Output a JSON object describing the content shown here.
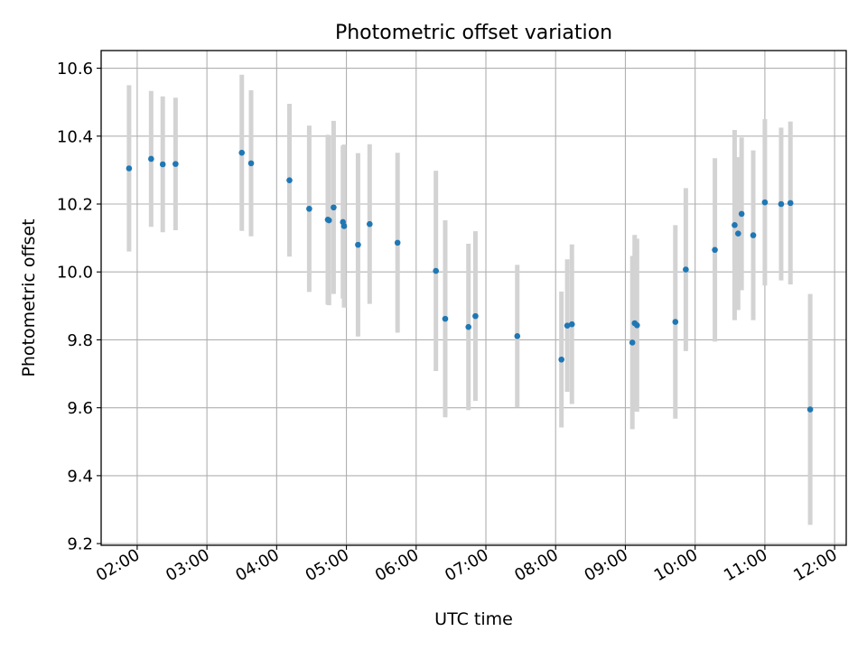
{
  "chart_data": {
    "type": "scatter",
    "title": "Photometric offset variation",
    "xlabel": "UTC time",
    "ylabel": "Photometric offset",
    "xlim": [
      "01:29",
      "12:10"
    ],
    "ylim": [
      9.195,
      10.652
    ],
    "grid": true,
    "x_ticks": [
      "02:00",
      "03:00",
      "04:00",
      "05:00",
      "06:00",
      "07:00",
      "08:00",
      "09:00",
      "10:00",
      "11:00",
      "12:00"
    ],
    "y_ticks": [
      "9.2",
      "9.4",
      "9.6",
      "9.8",
      "10.0",
      "10.2",
      "10.4",
      "10.6"
    ],
    "point_color": "#1f77b4",
    "errorbar_color": "#d3d3d3",
    "points": [
      {
        "x": "01:53",
        "y": 10.305,
        "err": 0.245
      },
      {
        "x": "02:12",
        "y": 10.333,
        "err": 0.2
      },
      {
        "x": "02:22",
        "y": 10.317,
        "err": 0.2
      },
      {
        "x": "02:33",
        "y": 10.318,
        "err": 0.195
      },
      {
        "x": "03:30",
        "y": 10.351,
        "err": 0.23
      },
      {
        "x": "03:38",
        "y": 10.32,
        "err": 0.215
      },
      {
        "x": "04:11",
        "y": 10.27,
        "err": 0.225
      },
      {
        "x": "04:28",
        "y": 10.186,
        "err": 0.245
      },
      {
        "x": "04:44",
        "y": 10.154,
        "err": 0.25
      },
      {
        "x": "04:45",
        "y": 10.152,
        "err": 0.25
      },
      {
        "x": "04:49",
        "y": 10.19,
        "err": 0.255
      },
      {
        "x": "04:57",
        "y": 10.147,
        "err": 0.225
      },
      {
        "x": "04:58",
        "y": 10.135,
        "err": 0.24
      },
      {
        "x": "05:10",
        "y": 10.08,
        "err": 0.27
      },
      {
        "x": "05:20",
        "y": 10.141,
        "err": 0.235
      },
      {
        "x": "05:44",
        "y": 10.086,
        "err": 0.265
      },
      {
        "x": "06:17",
        "y": 10.003,
        "err": 0.295
      },
      {
        "x": "06:25",
        "y": 9.862,
        "err": 0.29
      },
      {
        "x": "06:45",
        "y": 9.838,
        "err": 0.245
      },
      {
        "x": "06:51",
        "y": 9.87,
        "err": 0.25
      },
      {
        "x": "07:27",
        "y": 9.811,
        "err": 0.21
      },
      {
        "x": "08:05",
        "y": 9.742,
        "err": 0.2
      },
      {
        "x": "08:10",
        "y": 9.842,
        "err": 0.195
      },
      {
        "x": "08:14",
        "y": 9.846,
        "err": 0.235
      },
      {
        "x": "09:06",
        "y": 9.792,
        "err": 0.255
      },
      {
        "x": "09:08",
        "y": 9.849,
        "err": 0.26
      },
      {
        "x": "09:10",
        "y": 9.843,
        "err": 0.255
      },
      {
        "x": "09:43",
        "y": 9.853,
        "err": 0.285
      },
      {
        "x": "09:52",
        "y": 10.007,
        "err": 0.24
      },
      {
        "x": "10:17",
        "y": 10.065,
        "err": 0.27
      },
      {
        "x": "10:34",
        "y": 10.138,
        "err": 0.28
      },
      {
        "x": "10:37",
        "y": 10.113,
        "err": 0.225
      },
      {
        "x": "10:40",
        "y": 10.171,
        "err": 0.225
      },
      {
        "x": "10:50",
        "y": 10.108,
        "err": 0.25
      },
      {
        "x": "11:00",
        "y": 10.205,
        "err": 0.245
      },
      {
        "x": "11:14",
        "y": 10.2,
        "err": 0.225
      },
      {
        "x": "11:22",
        "y": 10.203,
        "err": 0.24
      },
      {
        "x": "11:39",
        "y": 9.595,
        "err": 0.34
      }
    ]
  }
}
